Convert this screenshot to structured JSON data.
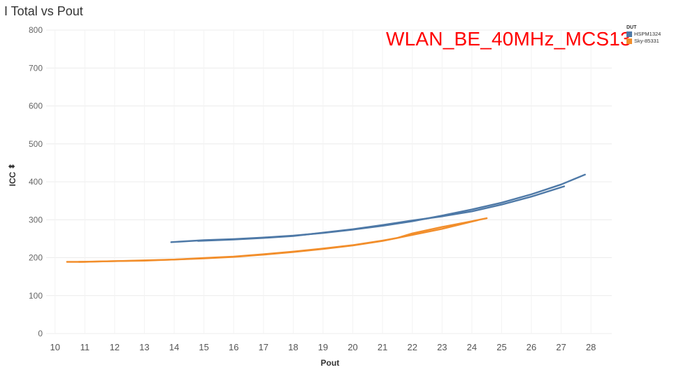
{
  "chart_data": {
    "type": "line",
    "title": "I Total vs Pout",
    "annotation": "WLAN_BE_40MHz_MCS13",
    "xlabel": "Pout",
    "ylabel": "ICC",
    "xlim": [
      9.7,
      28.7
    ],
    "ylim": [
      0,
      800
    ],
    "xticks": [
      10,
      11,
      12,
      13,
      14,
      15,
      16,
      17,
      18,
      19,
      20,
      21,
      22,
      23,
      24,
      25,
      26,
      27,
      28
    ],
    "yticks": [
      0,
      100,
      200,
      300,
      400,
      500,
      600,
      700,
      800
    ],
    "grid": true,
    "legend_title": "DUT",
    "legend_position": "top-right",
    "series": [
      {
        "name": "HSPM1324",
        "color": "#4e79a7",
        "lines": [
          [
            [
              13.9,
              241
            ],
            [
              15,
              246
            ],
            [
              16,
              249
            ],
            [
              17,
              253
            ],
            [
              18,
              258
            ],
            [
              19,
              265
            ],
            [
              20,
              274
            ],
            [
              21,
              284
            ],
            [
              22,
              296
            ],
            [
              23,
              311
            ],
            [
              24,
              327
            ],
            [
              25,
              345
            ],
            [
              26,
              367
            ],
            [
              27,
              393
            ],
            [
              27.8,
              419
            ]
          ],
          [
            [
              14.8,
              244
            ],
            [
              16,
              248
            ],
            [
              17,
              252
            ],
            [
              18,
              257
            ],
            [
              19,
              266
            ],
            [
              20,
              275
            ],
            [
              21,
              286
            ],
            [
              22,
              298
            ],
            [
              23,
              309
            ],
            [
              24,
              322
            ],
            [
              25,
              340
            ],
            [
              26,
              361
            ],
            [
              27.1,
              388
            ]
          ]
        ]
      },
      {
        "name": "Sky-85331",
        "color": "#f28e2b",
        "lines": [
          [
            [
              10.4,
              189
            ],
            [
              11,
              189
            ],
            [
              12,
              191
            ],
            [
              13,
              192
            ],
            [
              14,
              195
            ],
            [
              15,
              198
            ],
            [
              16,
              202
            ],
            [
              17,
              208
            ],
            [
              18,
              215
            ],
            [
              19,
              223
            ],
            [
              20,
              232
            ],
            [
              21,
              244
            ],
            [
              22,
              260
            ],
            [
              23,
              276
            ],
            [
              24.2,
              299
            ]
          ],
          [
            [
              10.8,
              189
            ],
            [
              12,
              191
            ],
            [
              13,
              193
            ],
            [
              14,
              195
            ],
            [
              15,
              199
            ],
            [
              16,
              203
            ],
            [
              17,
              209
            ],
            [
              18,
              216
            ],
            [
              19,
              224
            ],
            [
              20,
              233
            ],
            [
              21,
              245
            ],
            [
              21.5,
              252
            ],
            [
              22,
              264
            ],
            [
              23,
              281
            ],
            [
              24,
              296
            ],
            [
              24.5,
              304
            ]
          ]
        ]
      }
    ]
  }
}
